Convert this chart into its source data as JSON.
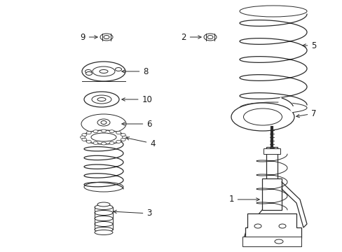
{
  "bg_color": "#ffffff",
  "line_color": "#2a2a2a",
  "label_color": "#1a1a1a",
  "figsize": [
    4.89,
    3.6
  ],
  "dpi": 100,
  "lw_thin": 0.7,
  "lw_med": 0.9,
  "lw_thick": 1.2,
  "fontsize": 8.5
}
